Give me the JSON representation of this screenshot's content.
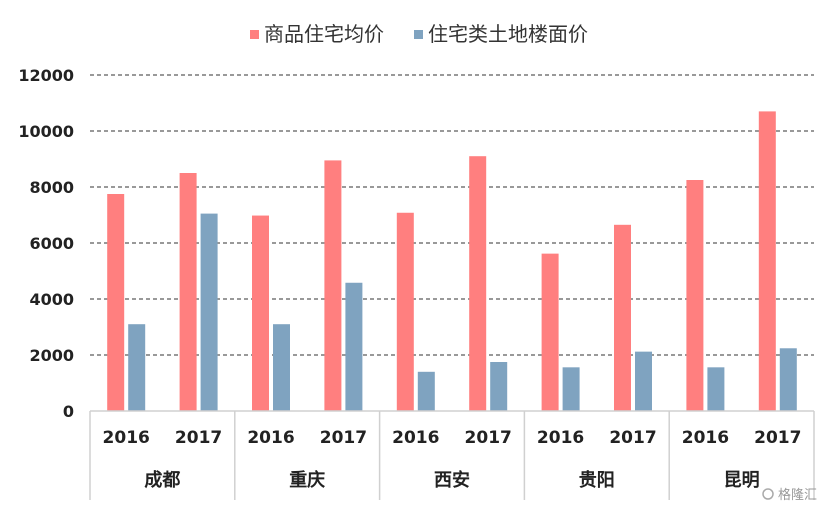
{
  "chart_data": {
    "type": "bar",
    "title": "",
    "legend": {
      "position": "top",
      "series_names": [
        "商品住宅均价",
        "住宅类土地楼面价"
      ]
    },
    "y_axis": {
      "min": 0,
      "max": 12000,
      "step": 2000,
      "ticks": [
        "0",
        "2000",
        "4000",
        "6000",
        "8000",
        "10000",
        "12000"
      ],
      "grid": "dashed"
    },
    "groups": [
      {
        "city": "成都",
        "years": [
          "2016",
          "2017"
        ]
      },
      {
        "city": "重庆",
        "years": [
          "2016",
          "2017"
        ]
      },
      {
        "city": "西安",
        "years": [
          "2016",
          "2017"
        ]
      },
      {
        "city": "贵阳",
        "years": [
          "2016",
          "2017"
        ]
      },
      {
        "city": "昆明",
        "years": [
          "2016",
          "2017"
        ]
      }
    ],
    "categories": [
      "成都 2016",
      "成都 2017",
      "重庆 2016",
      "重庆 2017",
      "西安 2016",
      "西安 2017",
      "贵阳 2016",
      "贵阳 2017",
      "昆明 2016",
      "昆明 2017"
    ],
    "series": [
      {
        "name": "商品住宅均价",
        "color": "#FF7F7F",
        "values": [
          7750,
          8500,
          6980,
          8950,
          7080,
          9100,
          5620,
          6650,
          8250,
          10700
        ]
      },
      {
        "name": "住宅类土地楼面价",
        "color": "#7FA3C0",
        "values": [
          3100,
          7050,
          3100,
          4580,
          1400,
          1750,
          1560,
          2120,
          1560,
          2240
        ]
      }
    ]
  },
  "watermark": "格隆汇",
  "watermark_icon": "weibo-icon"
}
